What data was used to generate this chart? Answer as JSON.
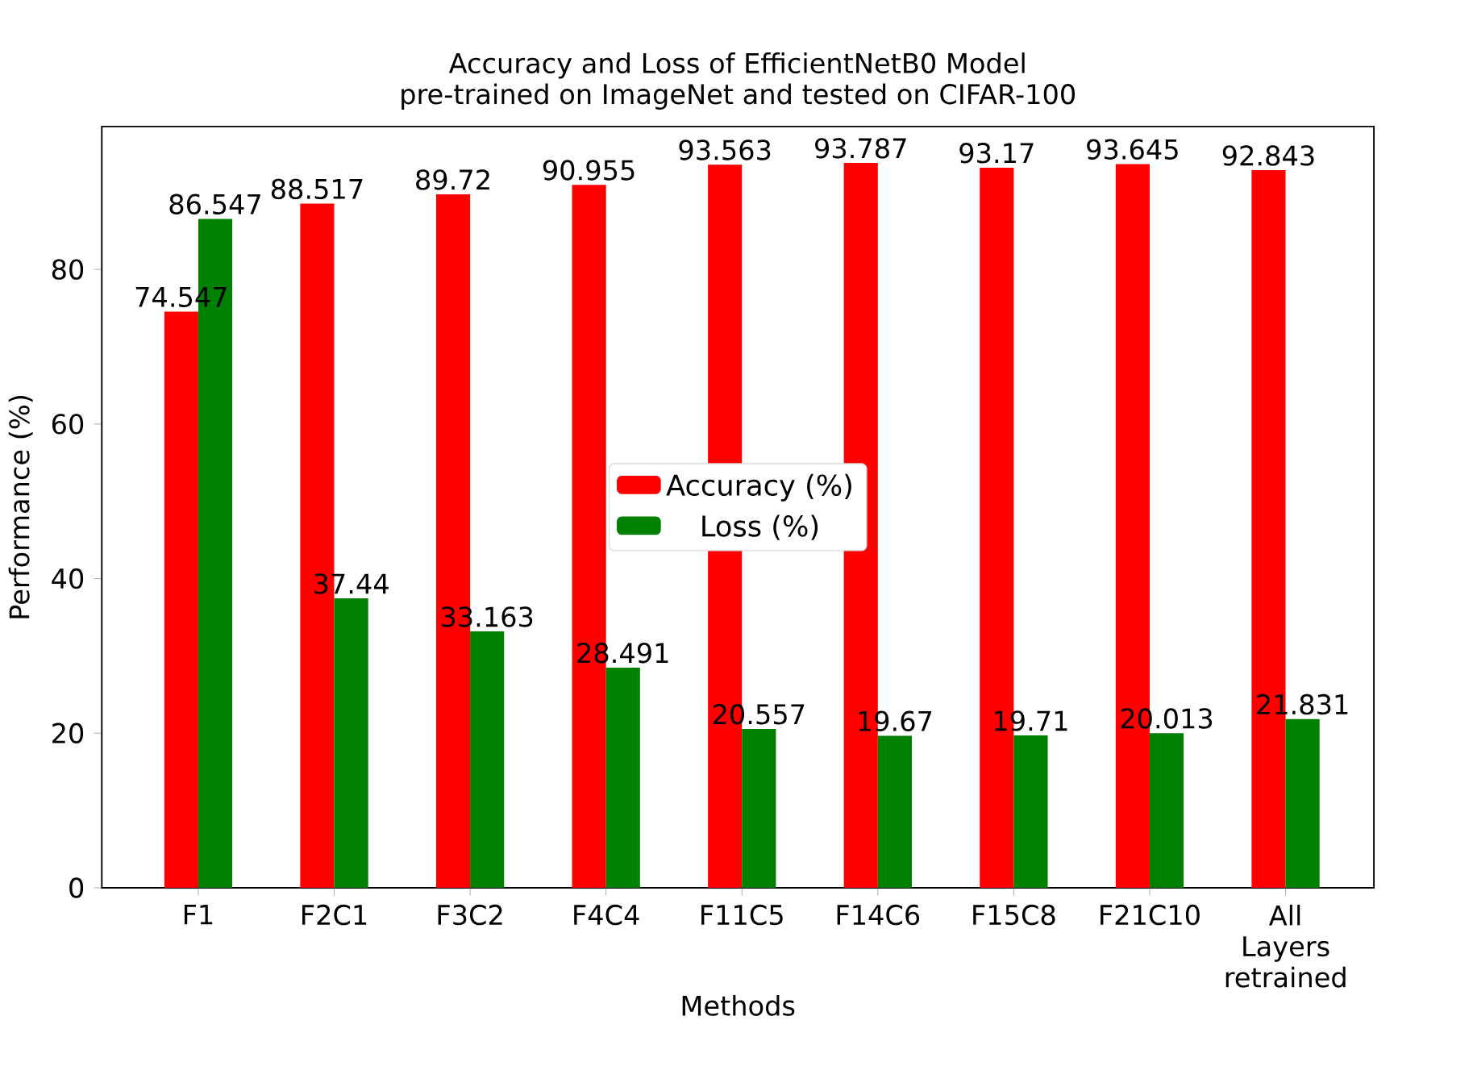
{
  "chart_data": {
    "type": "bar",
    "title": "Accuracy and Loss of EfficientNetB0 Model",
    "subtitle": "pre-trained on ImageNet and tested on CIFAR-100",
    "xlabel": "Methods",
    "ylabel": "Performance (%)",
    "categories": [
      "F1",
      "F2C1",
      "F3C2",
      "F4C4",
      "F11C5",
      "F14C6",
      "F15C8",
      "F21C10",
      "All Layers retrained"
    ],
    "series": [
      {
        "name": "Accuracy (%)",
        "color": "#ff0000",
        "values": [
          74.547,
          88.517,
          89.72,
          90.955,
          93.563,
          93.787,
          93.17,
          93.645,
          92.843
        ]
      },
      {
        "name": "Loss (%)",
        "color": "#008000",
        "values": [
          86.547,
          37.44,
          33.163,
          28.491,
          20.557,
          19.67,
          19.71,
          20.013,
          21.831
        ]
      }
    ],
    "ylim": [
      0,
      98.5
    ],
    "yticks": [
      0,
      20,
      40,
      60,
      80
    ],
    "data_labels": true,
    "legend": "center"
  }
}
